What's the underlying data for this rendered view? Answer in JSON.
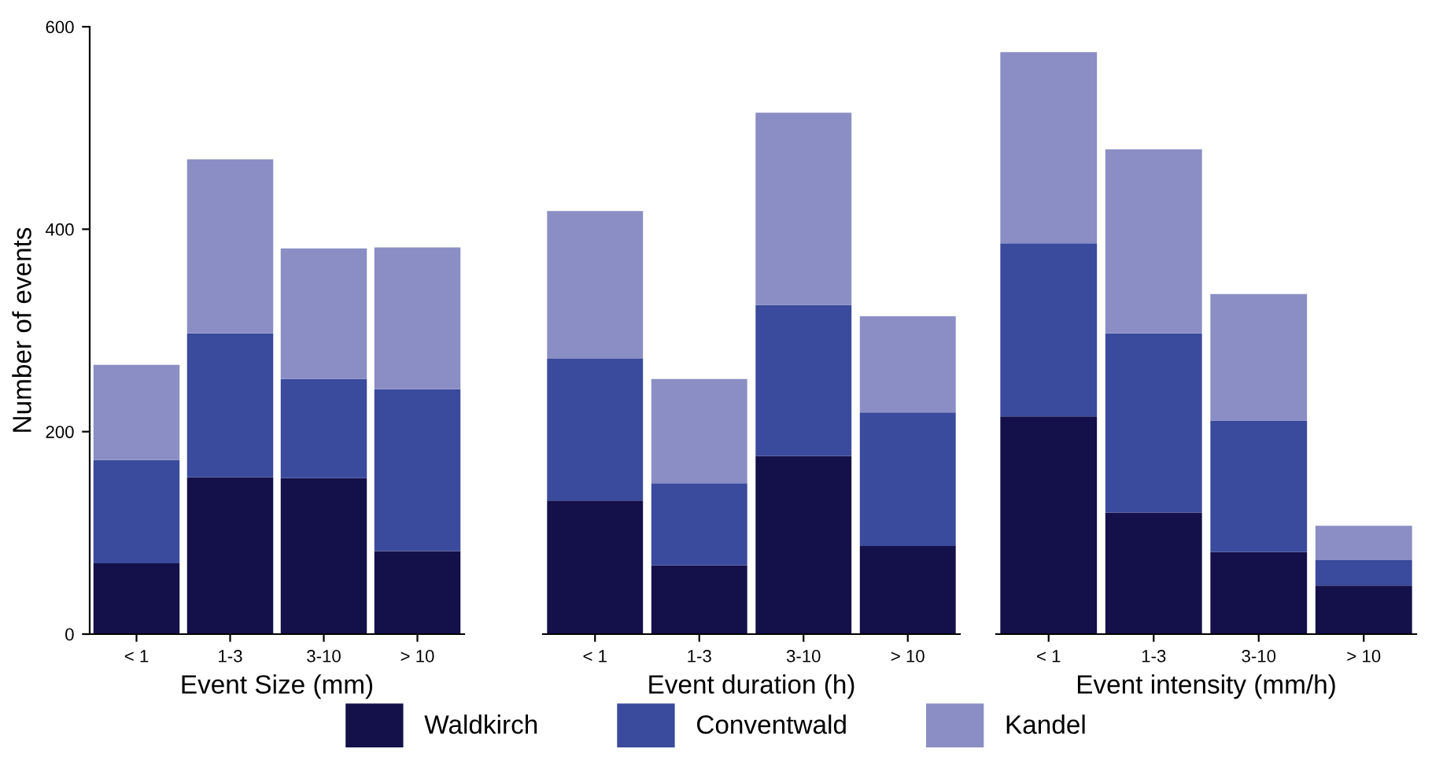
{
  "chart_data": [
    {
      "type": "bar",
      "stacked": true,
      "xlabel": "Event Size (mm)",
      "ylabel": "Number of events",
      "categories": [
        "< 1",
        "1-3",
        "3-10",
        "> 10"
      ],
      "ylim": [
        0,
        600
      ],
      "yticks": [
        0,
        200,
        400,
        600
      ],
      "grid": false,
      "legend": "bottom",
      "series": [
        {
          "name": "Waldkirch",
          "color": "#14104a",
          "values": [
            70,
            155,
            154,
            82
          ]
        },
        {
          "name": "Conventwald",
          "color": "#3a4a9c",
          "values": [
            102,
            142,
            98,
            160
          ]
        },
        {
          "name": "Kandel",
          "color": "#8a8ec4",
          "values": [
            94,
            172,
            129,
            140
          ]
        }
      ]
    },
    {
      "type": "bar",
      "stacked": true,
      "xlabel": "Event duration (h)",
      "categories": [
        "< 1",
        "1-3",
        "3-10",
        "> 10"
      ],
      "ylim": [
        0,
        600
      ],
      "yticks": [
        0,
        200,
        400,
        600
      ],
      "tick_labels": "x",
      "grid": false,
      "series": [
        {
          "name": "Waldkirch",
          "color": "#14104a",
          "values": [
            132,
            68,
            176,
            87
          ]
        },
        {
          "name": "Conventwald",
          "color": "#3a4a9c",
          "values": [
            140,
            81,
            149,
            132
          ]
        },
        {
          "name": "Kandel",
          "color": "#8a8ec4",
          "values": [
            146,
            103,
            190,
            95
          ]
        }
      ]
    },
    {
      "type": "bar",
      "stacked": true,
      "xlabel": "Event intensity (mm/h)",
      "categories": [
        "< 1",
        "1-3",
        "3-10",
        "> 10"
      ],
      "ylim": [
        0,
        600
      ],
      "yticks": [
        0,
        200,
        400,
        600
      ],
      "tick_labels": "x",
      "grid": false,
      "series": [
        {
          "name": "Waldkirch",
          "color": "#14104a",
          "values": [
            215,
            120,
            81,
            48
          ]
        },
        {
          "name": "Conventwald",
          "color": "#3a4a9c",
          "values": [
            171,
            177,
            130,
            25
          ]
        },
        {
          "name": "Kandel",
          "color": "#8a8ec4",
          "values": [
            189,
            182,
            125,
            34
          ]
        }
      ]
    }
  ]
}
